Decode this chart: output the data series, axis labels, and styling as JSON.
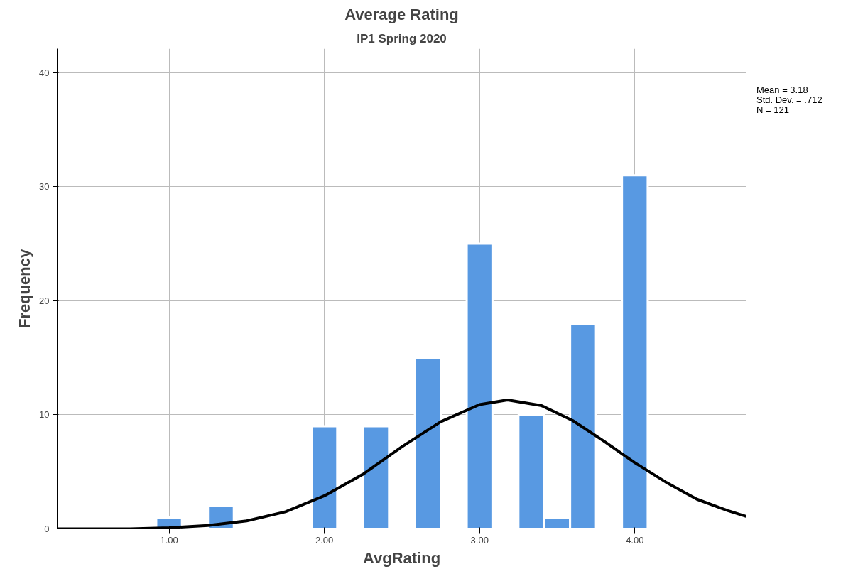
{
  "chart_data": {
    "type": "histogram",
    "title": "Average Rating",
    "subtitle": "IP1 Spring 2020",
    "xlabel": "AvgRating",
    "ylabel": "Frequency",
    "bins": [
      0.917,
      1.083,
      1.25,
      1.417,
      1.583,
      1.75,
      1.917,
      2.083,
      2.25,
      2.417,
      2.583,
      2.75,
      2.917,
      3.083,
      3.25,
      3.417,
      3.583,
      3.75,
      3.917,
      4.083
    ],
    "values": [
      1,
      0,
      2,
      0,
      0,
      0,
      9,
      0,
      9,
      0,
      15,
      0,
      25,
      0,
      10,
      1,
      18,
      0,
      31
    ],
    "color": "#5899e2",
    "series": [
      {
        "type": "line",
        "color": "#000000",
        "x": [
          0.279,
          0.5,
          0.75,
          1.0,
          1.25,
          1.5,
          1.75,
          2.0,
          2.25,
          2.5,
          2.75,
          3.0,
          3.18,
          3.4,
          3.6,
          3.8,
          4.0,
          4.2,
          4.4,
          4.6,
          4.717
        ],
        "values": [
          0.0,
          0.0,
          0.0,
          0.1,
          0.3,
          0.7,
          1.5,
          2.9,
          4.8,
          7.2,
          9.4,
          10.9,
          11.3,
          10.8,
          9.5,
          7.7,
          5.8,
          4.1,
          2.6,
          1.6,
          1.1
        ]
      }
    ],
    "xlim": [
      0.279,
      4.717
    ],
    "ylim": [
      0,
      42.1
    ],
    "xticks": [
      {
        "value": 1,
        "label": "1.00"
      },
      {
        "value": 2,
        "label": "2.00"
      },
      {
        "value": 3,
        "label": "3.00"
      },
      {
        "value": 4,
        "label": "4.00"
      }
    ],
    "yticks": [
      0,
      10,
      20,
      30,
      40
    ],
    "grid": true,
    "annotations": [
      "Mean = 3.18",
      "Std. Dev. = .712",
      "N = 121"
    ]
  }
}
